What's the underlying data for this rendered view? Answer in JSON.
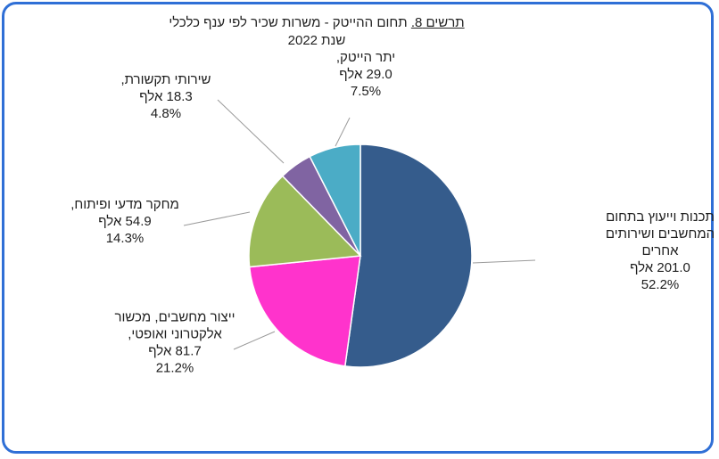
{
  "title": {
    "figure_label": "תרשים 8.",
    "text": " תחום ההייטק - משרות שכיר לפי ענף כלכלי",
    "subtitle": "שנת 2022"
  },
  "chart_data": {
    "type": "pie",
    "title": "תרשים 8. תחום ההייטק - משרות שכיר לפי ענף כלכלי",
    "subtitle": "שנת 2022",
    "unit": "אלף",
    "slices": [
      {
        "label_lines": [
          "תכנות וייעוץ  בתחום",
          "המחשבים ושירותים",
          "אחרים"
        ],
        "value": 201.0,
        "value_text": "201.0 אלף",
        "percent": 52.2,
        "percent_text": "52.2%",
        "color": "#355c8c"
      },
      {
        "label_lines": [
          "ייצור מחשבים, מכשור",
          "אלקטרוני ואופטי,"
        ],
        "value": 81.7,
        "value_text": "81.7 אלף",
        "percent": 21.2,
        "percent_text": "21.2%",
        "color": "#ff33cc"
      },
      {
        "label_lines": [
          "מחקר מדעי ופיתוח,"
        ],
        "value": 54.9,
        "value_text": "54.9 אלף",
        "percent": 14.3,
        "percent_text": "14.3%",
        "color": "#9bbb59"
      },
      {
        "label_lines": [
          "שירותי תקשורת,"
        ],
        "value": 18.3,
        "value_text": "18.3 אלף",
        "percent": 4.8,
        "percent_text": "4.8%",
        "color": "#8064a2"
      },
      {
        "label_lines": [
          "יתר הייטק,"
        ],
        "value": 29.0,
        "value_text": "29.0 אלף",
        "percent": 7.5,
        "percent_text": "7.5%",
        "color": "#4bacc6"
      }
    ]
  }
}
